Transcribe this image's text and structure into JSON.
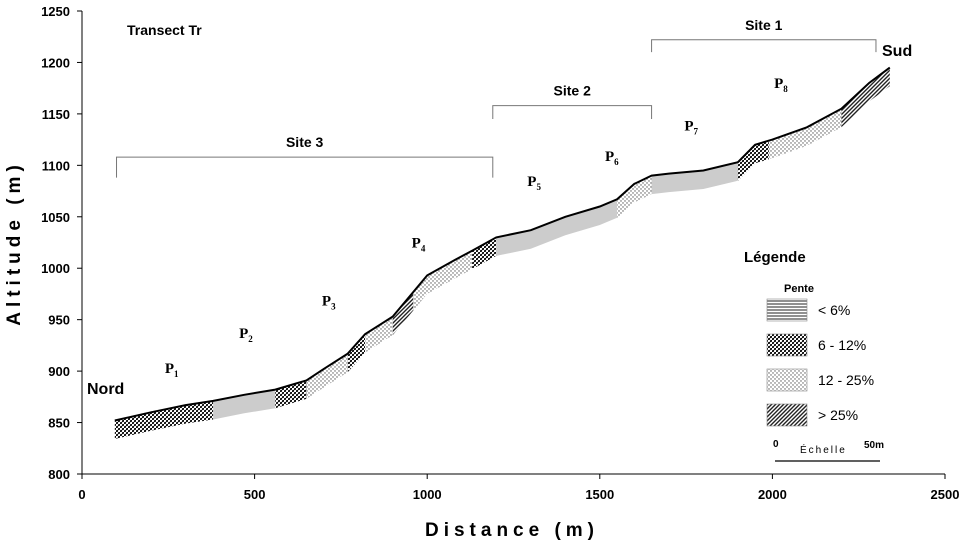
{
  "chart_data": {
    "type": "area",
    "title": "Transect Tr",
    "xlabel": "Distance (m)",
    "ylabel": "Altitude (m)",
    "xlim": [
      0,
      2500
    ],
    "ylim": [
      800,
      1250
    ],
    "x_ticks": [
      0,
      500,
      1000,
      1500,
      2000,
      2500
    ],
    "y_ticks": [
      800,
      850,
      900,
      950,
      1000,
      1050,
      1100,
      1150,
      1200,
      1250
    ],
    "grid": false,
    "profile": [
      {
        "x": 95,
        "y": 852
      },
      {
        "x": 200,
        "y": 860
      },
      {
        "x": 300,
        "y": 867
      },
      {
        "x": 380,
        "y": 871
      },
      {
        "x": 470,
        "y": 877
      },
      {
        "x": 560,
        "y": 882
      },
      {
        "x": 650,
        "y": 891
      },
      {
        "x": 700,
        "y": 902
      },
      {
        "x": 770,
        "y": 917
      },
      {
        "x": 820,
        "y": 936
      },
      {
        "x": 900,
        "y": 953
      },
      {
        "x": 960,
        "y": 977
      },
      {
        "x": 1000,
        "y": 993
      },
      {
        "x": 1080,
        "y": 1008
      },
      {
        "x": 1130,
        "y": 1017
      },
      {
        "x": 1200,
        "y": 1030
      },
      {
        "x": 1300,
        "y": 1037
      },
      {
        "x": 1400,
        "y": 1050
      },
      {
        "x": 1500,
        "y": 1060
      },
      {
        "x": 1550,
        "y": 1067
      },
      {
        "x": 1600,
        "y": 1082
      },
      {
        "x": 1650,
        "y": 1090
      },
      {
        "x": 1700,
        "y": 1092
      },
      {
        "x": 1800,
        "y": 1095
      },
      {
        "x": 1900,
        "y": 1103
      },
      {
        "x": 1950,
        "y": 1120
      },
      {
        "x": 2000,
        "y": 1125
      },
      {
        "x": 2100,
        "y": 1137
      },
      {
        "x": 2200,
        "y": 1155
      },
      {
        "x": 2280,
        "y": 1180
      },
      {
        "x": 2340,
        "y": 1195
      }
    ],
    "band_depth": 18,
    "segments": [
      {
        "from": 95,
        "to": 380,
        "slope": "6 - 12%"
      },
      {
        "from": 380,
        "to": 560,
        "slope": "< 6%"
      },
      {
        "from": 560,
        "to": 650,
        "slope": "6 - 12%"
      },
      {
        "from": 650,
        "to": 770,
        "slope": "12 - 25%"
      },
      {
        "from": 770,
        "to": 820,
        "slope": "6 - 12%"
      },
      {
        "from": 820,
        "to": 900,
        "slope": "12 - 25%"
      },
      {
        "from": 900,
        "to": 960,
        "slope": "> 25%"
      },
      {
        "from": 960,
        "to": 1130,
        "slope": "12 - 25%"
      },
      {
        "from": 1130,
        "to": 1200,
        "slope": "6 - 12%"
      },
      {
        "from": 1200,
        "to": 1550,
        "slope": "< 6%"
      },
      {
        "from": 1550,
        "to": 1650,
        "slope": "12 - 25%"
      },
      {
        "from": 1650,
        "to": 1900,
        "slope": "< 6%"
      },
      {
        "from": 1900,
        "to": 1990,
        "slope": "6 - 12%"
      },
      {
        "from": 1990,
        "to": 2200,
        "slope": "12 - 25%"
      },
      {
        "from": 2200,
        "to": 2340,
        "slope": "> 25%"
      }
    ],
    "sites": [
      {
        "label": "Site 3",
        "from": 100,
        "to": 1190,
        "y": 1108,
        "drop": 1088
      },
      {
        "label": "Site 2",
        "from": 1190,
        "to": 1650,
        "y": 1158,
        "drop": 1145
      },
      {
        "label": "Site 1",
        "from": 1650,
        "to": 2300,
        "y": 1222,
        "drop": 1210
      }
    ],
    "points": [
      {
        "label": "P",
        "sub": "1",
        "x": 240,
        "y": 898
      },
      {
        "label": "P",
        "sub": "2",
        "x": 455,
        "y": 932
      },
      {
        "label": "P",
        "sub": "3",
        "x": 695,
        "y": 964
      },
      {
        "label": "P",
        "sub": "4",
        "x": 955,
        "y": 1020
      },
      {
        "label": "P",
        "sub": "5",
        "x": 1290,
        "y": 1080
      },
      {
        "label": "P",
        "sub": "6",
        "x": 1515,
        "y": 1104
      },
      {
        "label": "P",
        "sub": "7",
        "x": 1745,
        "y": 1134
      },
      {
        "label": "P",
        "sub": "8",
        "x": 2005,
        "y": 1175
      }
    ],
    "end_labels": {
      "north": "Nord",
      "south": "Sud"
    },
    "legend": {
      "title": "Légende",
      "subtitle": "Pente",
      "position": "right",
      "items": [
        {
          "label": "<  6%",
          "pattern": "horizontal"
        },
        {
          "label": "6 - 12%",
          "pattern": "crosshatch"
        },
        {
          "label": "12 - 25%",
          "pattern": "dotted"
        },
        {
          "label": "> 25%",
          "pattern": "diagonal"
        }
      ]
    },
    "scale_bar": {
      "start": "0",
      "end": "50m",
      "word": "Échelle"
    }
  }
}
